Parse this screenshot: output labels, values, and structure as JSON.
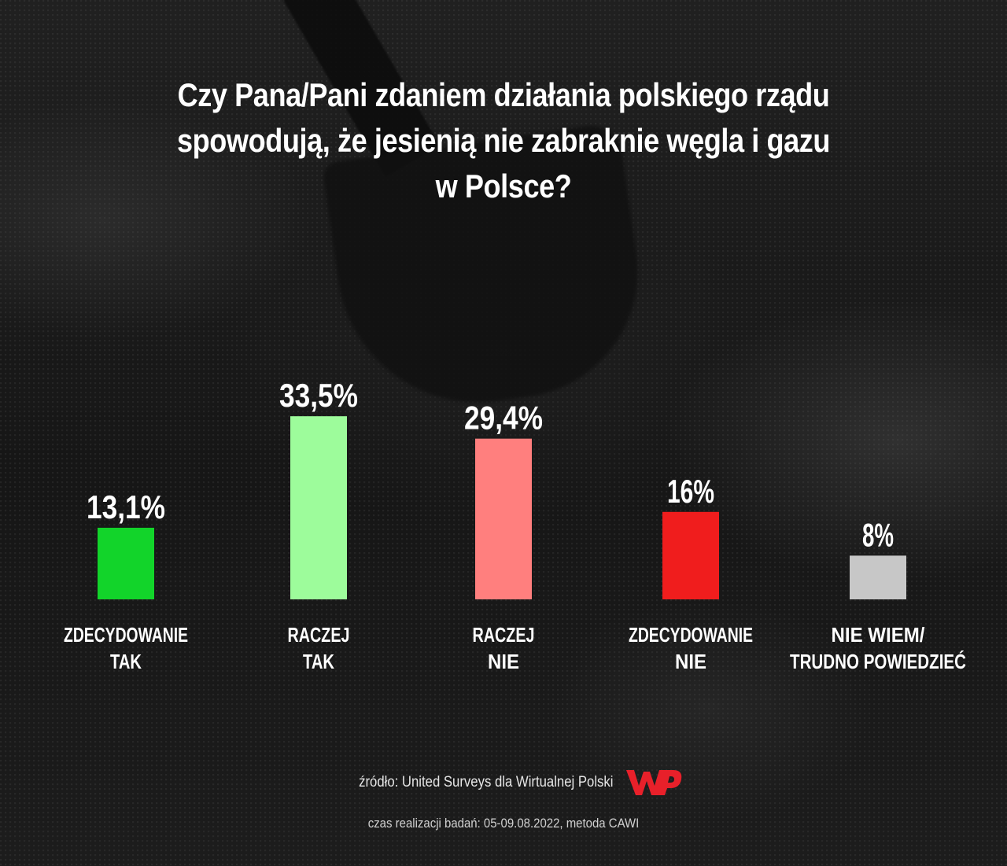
{
  "chart_data": {
    "type": "bar",
    "title": "Czy Pana/Pani zdaniem działania polskiego rządu spowodują, że jesienią nie zabraknie węgla i gazu w Polsce?",
    "title_lines": [
      "Czy Pana/Pani zdaniem działania polskiego rządu",
      "spowodują, że jesienią nie zabraknie węgla i gazu",
      "w Polsce?"
    ],
    "categories": [
      [
        "ZDECYDOWANIE",
        "TAK"
      ],
      [
        "RACZEJ",
        "TAK"
      ],
      [
        "RACZEJ",
        "NIE"
      ],
      [
        "ZDECYDOWANIE",
        "NIE"
      ],
      [
        "NIE WIEM/",
        "TRUDNO POWIEDZIEĆ"
      ]
    ],
    "values": [
      13.1,
      33.5,
      29.4,
      16,
      8
    ],
    "value_labels": [
      "13,1%",
      "33,5%",
      "29,4%",
      "16%",
      "8%"
    ],
    "colors": [
      "#12d42a",
      "#9dfc9b",
      "#ff7f7e",
      "#f01d1d",
      "#c7c7c7"
    ],
    "unit": "%",
    "grid": false,
    "legend": "none"
  },
  "footer": {
    "source": "źródło: United Surveys dla Wirtualnej Polski",
    "logo": "WP",
    "date_method": "czas realizacji badań: 05-09.08.2022, metoda CAWI"
  }
}
